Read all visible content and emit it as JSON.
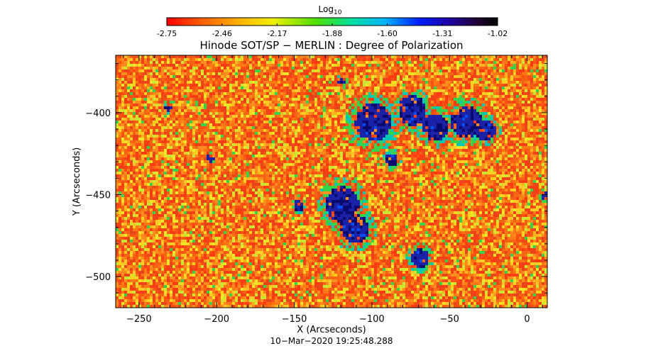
{
  "colors": {
    "background": "#ffffff",
    "low_signal": "#e8561a",
    "mid_signal": "#ffd21e",
    "threshold": "#36d24a",
    "high_signal": "#1a22a8",
    "max_signal": "#000000"
  },
  "colorbar": {
    "title_base": "Log",
    "title_sub": "10",
    "colormap": "rainbow-reversed (red to black)",
    "ticks": [
      "-2.75",
      "-2.46",
      "-2.17",
      "-1.88",
      "-1.60",
      "-1.31",
      "-1.02"
    ],
    "range": [
      -2.75,
      -1.02
    ]
  },
  "chart_data": {
    "type": "heatmap",
    "title": "Hinode SOT/SP − MERLIN : Degree of Polarization",
    "xlabel": "X (Arcseconds)",
    "ylabel": "Y (Arcseconds)",
    "xlim": [
      -265,
      13
    ],
    "ylim": [
      -519,
      -365
    ],
    "x_ticks": [
      -250,
      -200,
      -150,
      -100,
      -50,
      0
    ],
    "x_tick_labels": [
      "−250",
      "−200",
      "−150",
      "−100",
      "−50",
      "0"
    ],
    "y_ticks": [
      -400,
      -450,
      -500
    ],
    "y_tick_labels": [
      "−400",
      "−450",
      "−500"
    ],
    "value_range": [
      -2.75,
      -1.02
    ],
    "description_of_field": "granular orange/red background near -2.6 with strong polarization concentrations (blue/black, ~-1.3 to -1.1) in clusters",
    "strong_regions": [
      {
        "x": -100,
        "y": -405,
        "r": 14
      },
      {
        "x": -75,
        "y": -398,
        "r": 11
      },
      {
        "x": -60,
        "y": -408,
        "r": 10
      },
      {
        "x": -40,
        "y": -405,
        "r": 12
      },
      {
        "x": -28,
        "y": -410,
        "r": 8
      },
      {
        "x": -88,
        "y": -428,
        "r": 5
      },
      {
        "x": -120,
        "y": -455,
        "r": 13
      },
      {
        "x": -112,
        "y": -470,
        "r": 11
      },
      {
        "x": -70,
        "y": -488,
        "r": 7
      },
      {
        "x": -148,
        "y": -456,
        "r": 4
      },
      {
        "x": -232,
        "y": -396,
        "r": 3
      },
      {
        "x": -205,
        "y": -427,
        "r": 3
      },
      {
        "x": -120,
        "y": -380,
        "r": 3
      },
      {
        "x": 10,
        "y": -450,
        "r": 3
      }
    ]
  },
  "timestamp": "10−Mar−2020 19:25:48.288"
}
